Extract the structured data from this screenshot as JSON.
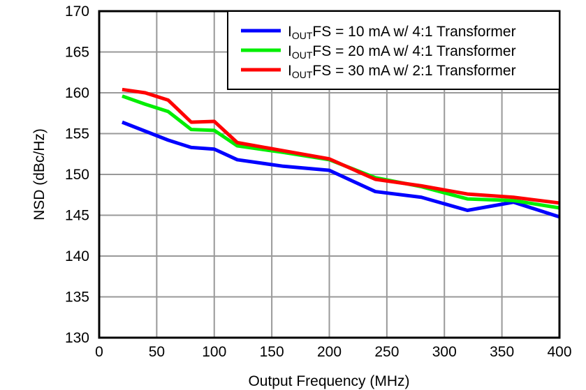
{
  "chart_data": {
    "type": "line",
    "title": "",
    "xlabel": "Output Frequency (MHz)",
    "ylabel": "NSD (dBc/Hz)",
    "xlim": [
      0,
      400
    ],
    "ylim": [
      130,
      170
    ],
    "xticks": [
      0,
      50,
      100,
      150,
      200,
      250,
      300,
      350,
      400
    ],
    "yticks": [
      130,
      135,
      140,
      145,
      150,
      155,
      160,
      165,
      170
    ],
    "grid": true,
    "legend_position": "top-right",
    "x": [
      20,
      40,
      60,
      80,
      100,
      120,
      160,
      200,
      240,
      280,
      320,
      360,
      400
    ],
    "series": [
      {
        "name": "I",
        "sub": "OUT",
        "rest": "FS = 10 mA w/ 4:1 Transformer",
        "color": "#0000ff",
        "values": [
          156.4,
          155.3,
          154.2,
          153.3,
          153.1,
          151.8,
          151.0,
          150.5,
          147.9,
          147.2,
          145.6,
          146.6,
          144.8
        ]
      },
      {
        "name": "I",
        "sub": "OUT",
        "rest": "FS = 20 mA w/ 4:1 Transformer",
        "color": "#00ee00",
        "values": [
          159.6,
          158.6,
          157.7,
          155.5,
          155.4,
          153.5,
          152.7,
          151.8,
          149.6,
          148.5,
          147.0,
          146.8,
          145.9
        ]
      },
      {
        "name": "I",
        "sub": "OUT",
        "rest": "FS = 30 mA w/ 2:1 Transformer",
        "color": "#ff0000",
        "values": [
          160.4,
          160.0,
          159.1,
          156.4,
          156.5,
          153.9,
          152.9,
          151.9,
          149.4,
          148.6,
          147.6,
          147.2,
          146.5
        ]
      }
    ]
  }
}
